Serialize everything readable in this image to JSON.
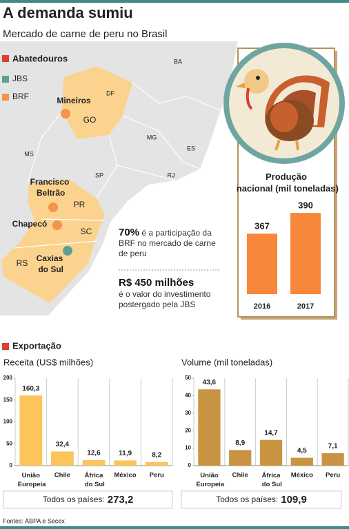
{
  "header": {
    "title": "A demanda sumiu",
    "subtitle": "Mercado de carne de peru no Brasil"
  },
  "map": {
    "legend_title": "Abatedouros",
    "legend": [
      {
        "name": "JBS",
        "color": "#5f9e98"
      },
      {
        "name": "BRF",
        "color": "#f5934a"
      }
    ],
    "states": [
      "BA",
      "DF",
      "GO",
      "MG",
      "ES",
      "MS",
      "SP",
      "RJ",
      "PR",
      "SC",
      "RS"
    ],
    "cities": [
      {
        "name": "Mineiros",
        "company": "BRF"
      },
      {
        "name": "Francisco Beltrão",
        "company": "BRF"
      },
      {
        "name": "Chapecó",
        "company": "BRF"
      },
      {
        "name": "Caxias do Sul",
        "company": "JBS"
      }
    ]
  },
  "facts": [
    {
      "highlight": "70%",
      "text": "é a participação da BRF no mercado de carne de peru"
    },
    {
      "highlight": "R$ 450 milhões",
      "text": "é o valor do investimento postergado pela JBS"
    }
  ],
  "section": "Exportação",
  "chart_data": [
    {
      "type": "bar",
      "title": "Produção nacional (mil toneladas)",
      "categories": [
        "2016",
        "2017"
      ],
      "values": [
        367,
        390
      ],
      "color": "#f7873a",
      "ylim": [
        300,
        400
      ]
    },
    {
      "type": "bar",
      "title": "Receita (US$ milhões)",
      "categories": [
        "União Europeia",
        "Chile",
        "África do Sul",
        "México",
        "Peru"
      ],
      "values": [
        160.3,
        32.4,
        12.6,
        11.9,
        8.2
      ],
      "value_labels": [
        "160,3",
        "32,4",
        "12,6",
        "11,9",
        "8,2"
      ],
      "color": "#fbc55c",
      "ylim": [
        0,
        200
      ],
      "yticks": [
        0,
        50,
        100,
        150,
        200
      ],
      "total_text": "Todos os países:",
      "total": "273,2"
    },
    {
      "type": "bar",
      "title": "Volume (mil toneladas)",
      "categories": [
        "União Europeia",
        "Chile",
        "África do Sul",
        "México",
        "Peru"
      ],
      "values": [
        43.6,
        8.9,
        14.7,
        4.5,
        7.1
      ],
      "value_labels": [
        "43,6",
        "8,9",
        "14,7",
        "4,5",
        "7,1"
      ],
      "color": "#c99441",
      "ylim": [
        0,
        50
      ],
      "yticks": [
        0,
        10,
        20,
        30,
        40,
        50
      ],
      "total_text": "Todos os países:",
      "total": "109,9"
    }
  ],
  "source": "Fontes: ABPA e Secex"
}
